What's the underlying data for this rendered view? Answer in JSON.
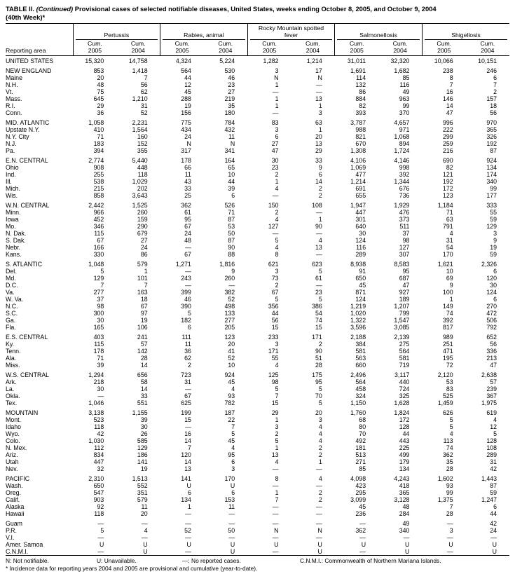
{
  "title": {
    "bold_prefix": "TABLE II. ",
    "continued": "(Continued) ",
    "rest": "Provisional cases of selected notifiable diseases, United States, weeks ending October 8, 2005, and October 9, 2004",
    "line2": "(40th Week)*"
  },
  "table": {
    "reporting_area_label": "Reporting area",
    "cum_label": "Cum.",
    "years": [
      "2005",
      "2004"
    ],
    "groups": [
      "Pertussis",
      "Rabies, animal",
      "Rocky Mountain spotted fever",
      "Salmonellosis",
      "Shigellosis"
    ],
    "rows": [
      {
        "area": "UNITED STATES",
        "v": [
          "15,320",
          "14,758",
          "4,324",
          "5,224",
          "1,282",
          "1,214",
          "31,011",
          "32,320",
          "10,066",
          "10,151"
        ]
      },
      {
        "spacer": true
      },
      {
        "area": "NEW ENGLAND",
        "v": [
          "853",
          "1,418",
          "564",
          "530",
          "3",
          "17",
          "1,691",
          "1,682",
          "238",
          "246"
        ]
      },
      {
        "area": "Maine",
        "v": [
          "20",
          "7",
          "44",
          "46",
          "N",
          "N",
          "114",
          "85",
          "8",
          "6"
        ]
      },
      {
        "area": "N.H.",
        "v": [
          "48",
          "56",
          "12",
          "23",
          "1",
          "—",
          "132",
          "116",
          "7",
          "7"
        ]
      },
      {
        "area": "Vt.",
        "v": [
          "75",
          "62",
          "45",
          "27",
          "—",
          "—",
          "86",
          "49",
          "16",
          "2"
        ]
      },
      {
        "area": "Mass.",
        "v": [
          "645",
          "1,210",
          "288",
          "219",
          "1",
          "13",
          "884",
          "963",
          "146",
          "157"
        ]
      },
      {
        "area": "R.I.",
        "v": [
          "29",
          "31",
          "19",
          "35",
          "1",
          "1",
          "82",
          "99",
          "14",
          "18"
        ]
      },
      {
        "area": "Conn.",
        "v": [
          "36",
          "52",
          "156",
          "180",
          "—",
          "3",
          "393",
          "370",
          "47",
          "56"
        ]
      },
      {
        "spacer": true
      },
      {
        "area": "MID. ATLANTIC",
        "v": [
          "1,058",
          "2,231",
          "775",
          "784",
          "83",
          "63",
          "3,787",
          "4,657",
          "996",
          "970"
        ]
      },
      {
        "area": "Upstate N.Y.",
        "v": [
          "410",
          "1,564",
          "434",
          "432",
          "3",
          "1",
          "988",
          "971",
          "222",
          "365"
        ]
      },
      {
        "area": "N.Y. City",
        "v": [
          "71",
          "160",
          "24",
          "11",
          "6",
          "20",
          "821",
          "1,068",
          "299",
          "326"
        ]
      },
      {
        "area": "N.J.",
        "v": [
          "183",
          "152",
          "N",
          "N",
          "27",
          "13",
          "670",
          "894",
          "259",
          "192"
        ]
      },
      {
        "area": "Pa.",
        "v": [
          "394",
          "355",
          "317",
          "341",
          "47",
          "29",
          "1,308",
          "1,724",
          "216",
          "87"
        ]
      },
      {
        "spacer": true
      },
      {
        "area": "E.N. CENTRAL",
        "v": [
          "2,774",
          "5,440",
          "178",
          "164",
          "30",
          "33",
          "4,106",
          "4,146",
          "690",
          "924"
        ]
      },
      {
        "area": "Ohio",
        "v": [
          "908",
          "448",
          "66",
          "65",
          "23",
          "9",
          "1,069",
          "998",
          "82",
          "134"
        ]
      },
      {
        "area": "Ind.",
        "v": [
          "255",
          "118",
          "11",
          "10",
          "2",
          "6",
          "477",
          "392",
          "121",
          "174"
        ]
      },
      {
        "area": "Ill.",
        "v": [
          "538",
          "1,029",
          "43",
          "44",
          "1",
          "14",
          "1,214",
          "1,344",
          "192",
          "340"
        ]
      },
      {
        "area": "Mich.",
        "v": [
          "215",
          "202",
          "33",
          "39",
          "4",
          "2",
          "691",
          "676",
          "172",
          "99"
        ]
      },
      {
        "area": "Wis.",
        "v": [
          "858",
          "3,643",
          "25",
          "6",
          "—",
          "2",
          "655",
          "736",
          "123",
          "177"
        ]
      },
      {
        "spacer": true
      },
      {
        "area": "W.N. CENTRAL",
        "v": [
          "2,442",
          "1,525",
          "362",
          "526",
          "150",
          "108",
          "1,947",
          "1,929",
          "1,184",
          "333"
        ]
      },
      {
        "area": "Minn.",
        "v": [
          "966",
          "260",
          "61",
          "71",
          "2",
          "—",
          "447",
          "476",
          "71",
          "55"
        ]
      },
      {
        "area": "Iowa",
        "v": [
          "452",
          "159",
          "95",
          "87",
          "4",
          "1",
          "301",
          "373",
          "63",
          "59"
        ]
      },
      {
        "area": "Mo.",
        "v": [
          "346",
          "290",
          "67",
          "53",
          "127",
          "90",
          "640",
          "511",
          "791",
          "129"
        ]
      },
      {
        "area": "N. Dak.",
        "v": [
          "115",
          "679",
          "24",
          "50",
          "—",
          "—",
          "30",
          "37",
          "4",
          "3"
        ]
      },
      {
        "area": "S. Dak.",
        "v": [
          "67",
          "27",
          "48",
          "87",
          "5",
          "4",
          "124",
          "98",
          "31",
          "9"
        ]
      },
      {
        "area": "Nebr.",
        "v": [
          "166",
          "24",
          "—",
          "90",
          "4",
          "13",
          "116",
          "127",
          "54",
          "19"
        ]
      },
      {
        "area": "Kans.",
        "v": [
          "330",
          "86",
          "67",
          "88",
          "8",
          "—",
          "289",
          "307",
          "170",
          "59"
        ]
      },
      {
        "spacer": true
      },
      {
        "area": "S. ATLANTIC",
        "v": [
          "1,048",
          "579",
          "1,271",
          "1,816",
          "621",
          "623",
          "8,938",
          "8,583",
          "1,621",
          "2,326"
        ]
      },
      {
        "area": "Del.",
        "v": [
          "5",
          "1",
          "—",
          "9",
          "3",
          "5",
          "91",
          "95",
          "10",
          "6"
        ]
      },
      {
        "area": "Md.",
        "v": [
          "129",
          "101",
          "243",
          "260",
          "73",
          "61",
          "650",
          "687",
          "69",
          "120"
        ]
      },
      {
        "area": "D.C.",
        "v": [
          "7",
          "7",
          "—",
          "—",
          "2",
          "—",
          "45",
          "47",
          "9",
          "30"
        ]
      },
      {
        "area": "Va.",
        "v": [
          "277",
          "163",
          "399",
          "382",
          "67",
          "23",
          "871",
          "927",
          "100",
          "124"
        ]
      },
      {
        "area": "W. Va.",
        "v": [
          "37",
          "18",
          "46",
          "52",
          "5",
          "5",
          "124",
          "189",
          "1",
          "6"
        ]
      },
      {
        "area": "N.C.",
        "v": [
          "98",
          "67",
          "390",
          "498",
          "356",
          "386",
          "1,219",
          "1,207",
          "149",
          "270"
        ]
      },
      {
        "area": "S.C.",
        "v": [
          "300",
          "97",
          "5",
          "133",
          "44",
          "54",
          "1,020",
          "799",
          "74",
          "472"
        ]
      },
      {
        "area": "Ga.",
        "v": [
          "30",
          "19",
          "182",
          "277",
          "56",
          "74",
          "1,322",
          "1,547",
          "392",
          "506"
        ]
      },
      {
        "area": "Fla.",
        "v": [
          "165",
          "106",
          "6",
          "205",
          "15",
          "15",
          "3,596",
          "3,085",
          "817",
          "792"
        ]
      },
      {
        "spacer": true
      },
      {
        "area": "E.S. CENTRAL",
        "v": [
          "403",
          "241",
          "111",
          "123",
          "233",
          "171",
          "2,188",
          "2,139",
          "989",
          "652"
        ]
      },
      {
        "area": "Ky.",
        "v": [
          "115",
          "57",
          "11",
          "20",
          "3",
          "2",
          "384",
          "275",
          "251",
          "56"
        ]
      },
      {
        "area": "Tenn.",
        "v": [
          "178",
          "142",
          "36",
          "41",
          "171",
          "90",
          "581",
          "564",
          "471",
          "336"
        ]
      },
      {
        "area": "Ala.",
        "v": [
          "71",
          "28",
          "62",
          "52",
          "55",
          "51",
          "563",
          "581",
          "195",
          "213"
        ]
      },
      {
        "area": "Miss.",
        "v": [
          "39",
          "14",
          "2",
          "10",
          "4",
          "28",
          "660",
          "719",
          "72",
          "47"
        ]
      },
      {
        "spacer": true
      },
      {
        "area": "W.S. CENTRAL",
        "v": [
          "1,294",
          "656",
          "723",
          "924",
          "125",
          "175",
          "2,496",
          "3,117",
          "2,120",
          "2,638"
        ]
      },
      {
        "area": "Ark.",
        "v": [
          "218",
          "58",
          "31",
          "45",
          "98",
          "95",
          "564",
          "440",
          "53",
          "57"
        ]
      },
      {
        "area": "La.",
        "v": [
          "30",
          "14",
          "—",
          "4",
          "5",
          "5",
          "458",
          "724",
          "83",
          "239"
        ]
      },
      {
        "area": "Okla.",
        "v": [
          "—",
          "33",
          "67",
          "93",
          "7",
          "70",
          "324",
          "325",
          "525",
          "367"
        ]
      },
      {
        "area": "Tex.",
        "v": [
          "1,046",
          "551",
          "625",
          "782",
          "15",
          "5",
          "1,150",
          "1,628",
          "1,459",
          "1,975"
        ]
      },
      {
        "spacer": true
      },
      {
        "area": "MOUNTAIN",
        "v": [
          "3,138",
          "1,155",
          "199",
          "187",
          "29",
          "20",
          "1,760",
          "1,824",
          "626",
          "619"
        ]
      },
      {
        "area": "Mont.",
        "v": [
          "523",
          "39",
          "15",
          "22",
          "1",
          "3",
          "68",
          "172",
          "5",
          "4"
        ]
      },
      {
        "area": "Idaho",
        "v": [
          "118",
          "30",
          "—",
          "7",
          "3",
          "4",
          "80",
          "128",
          "5",
          "12"
        ]
      },
      {
        "area": "Wyo.",
        "v": [
          "42",
          "26",
          "16",
          "5",
          "2",
          "4",
          "70",
          "44",
          "4",
          "5"
        ]
      },
      {
        "area": "Colo.",
        "v": [
          "1,030",
          "585",
          "14",
          "45",
          "5",
          "4",
          "492",
          "443",
          "113",
          "128"
        ]
      },
      {
        "area": "N. Mex.",
        "v": [
          "112",
          "129",
          "7",
          "4",
          "1",
          "2",
          "181",
          "225",
          "74",
          "108"
        ]
      },
      {
        "area": "Ariz.",
        "v": [
          "834",
          "186",
          "120",
          "95",
          "13",
          "2",
          "513",
          "499",
          "362",
          "289"
        ]
      },
      {
        "area": "Utah",
        "v": [
          "447",
          "141",
          "14",
          "6",
          "4",
          "1",
          "271",
          "179",
          "35",
          "31"
        ]
      },
      {
        "area": "Nev.",
        "v": [
          "32",
          "19",
          "13",
          "3",
          "—",
          "—",
          "85",
          "134",
          "28",
          "42"
        ]
      },
      {
        "spacer": true
      },
      {
        "area": "PACIFIC",
        "v": [
          "2,310",
          "1,513",
          "141",
          "170",
          "8",
          "4",
          "4,098",
          "4,243",
          "1,602",
          "1,443"
        ]
      },
      {
        "area": "Wash.",
        "v": [
          "650",
          "552",
          "U",
          "U",
          "—",
          "—",
          "423",
          "418",
          "93",
          "87"
        ]
      },
      {
        "area": "Oreg.",
        "v": [
          "547",
          "351",
          "6",
          "6",
          "1",
          "2",
          "295",
          "365",
          "99",
          "59"
        ]
      },
      {
        "area": "Calif.",
        "v": [
          "903",
          "579",
          "134",
          "153",
          "7",
          "2",
          "3,099",
          "3,128",
          "1,375",
          "1,247"
        ]
      },
      {
        "area": "Alaska",
        "v": [
          "92",
          "11",
          "1",
          "11",
          "—",
          "—",
          "45",
          "48",
          "7",
          "6"
        ]
      },
      {
        "area": "Hawaii",
        "v": [
          "118",
          "20",
          "—",
          "—",
          "—",
          "—",
          "236",
          "284",
          "28",
          "44"
        ]
      },
      {
        "spacer": true
      },
      {
        "area": "Guam",
        "v": [
          "—",
          "—",
          "—",
          "—",
          "—",
          "—",
          "—",
          "49",
          "—",
          "42"
        ]
      },
      {
        "area": "P.R.",
        "v": [
          "5",
          "4",
          "52",
          "50",
          "N",
          "N",
          "362",
          "340",
          "3",
          "24"
        ]
      },
      {
        "area": "V.I.",
        "v": [
          "—",
          "—",
          "—",
          "—",
          "—",
          "—",
          "—",
          "—",
          "—",
          "—"
        ]
      },
      {
        "area": "Amer. Samoa",
        "v": [
          "U",
          "U",
          "U",
          "U",
          "U",
          "U",
          "U",
          "U",
          "U",
          "U"
        ]
      },
      {
        "area": "C.N.M.I.",
        "v": [
          "—",
          "U",
          "—",
          "U",
          "—",
          "U",
          "—",
          "U",
          "—",
          "U"
        ]
      }
    ]
  },
  "footnotes": {
    "legend": [
      "N: Not notifiable.",
      "U: Unavailable.",
      "—: No reported cases.",
      "C.N.M.I.: Commonwealth of Northern Mariana Islands."
    ],
    "incidence_note": "* Incidence data for reporting years 2004 and 2005 are provisional and cumulative (year-to-date)."
  }
}
